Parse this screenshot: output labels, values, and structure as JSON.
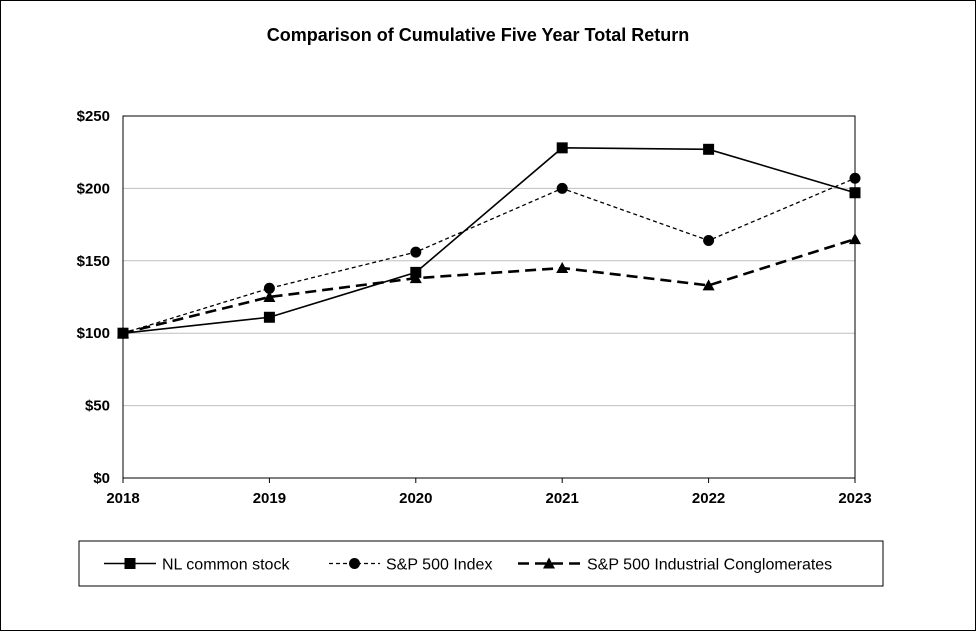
{
  "chart_data": {
    "type": "line",
    "title": "Comparison of Cumulative Five Year Total Return",
    "xlabel": "",
    "ylabel": "",
    "categories": [
      "2018",
      "2019",
      "2020",
      "2021",
      "2022",
      "2023"
    ],
    "y_ticks": [
      "$0",
      "$50",
      "$100",
      "$150",
      "$200",
      "$250"
    ],
    "ylim": [
      0,
      250
    ],
    "grid": "horizontal",
    "legend_position": "bottom",
    "series": [
      {
        "name": "NL common stock",
        "values": [
          100,
          111,
          142,
          228,
          227,
          197
        ],
        "marker": "square",
        "line_style": "solid"
      },
      {
        "name": "S&P 500 Index",
        "values": [
          100,
          131,
          156,
          200,
          164,
          207
        ],
        "marker": "circle",
        "line_style": "dotted"
      },
      {
        "name": "S&P 500 Industrial Conglomerates",
        "values": [
          100,
          125,
          138,
          145,
          133,
          165
        ],
        "marker": "triangle",
        "line_style": "dashed"
      }
    ]
  }
}
